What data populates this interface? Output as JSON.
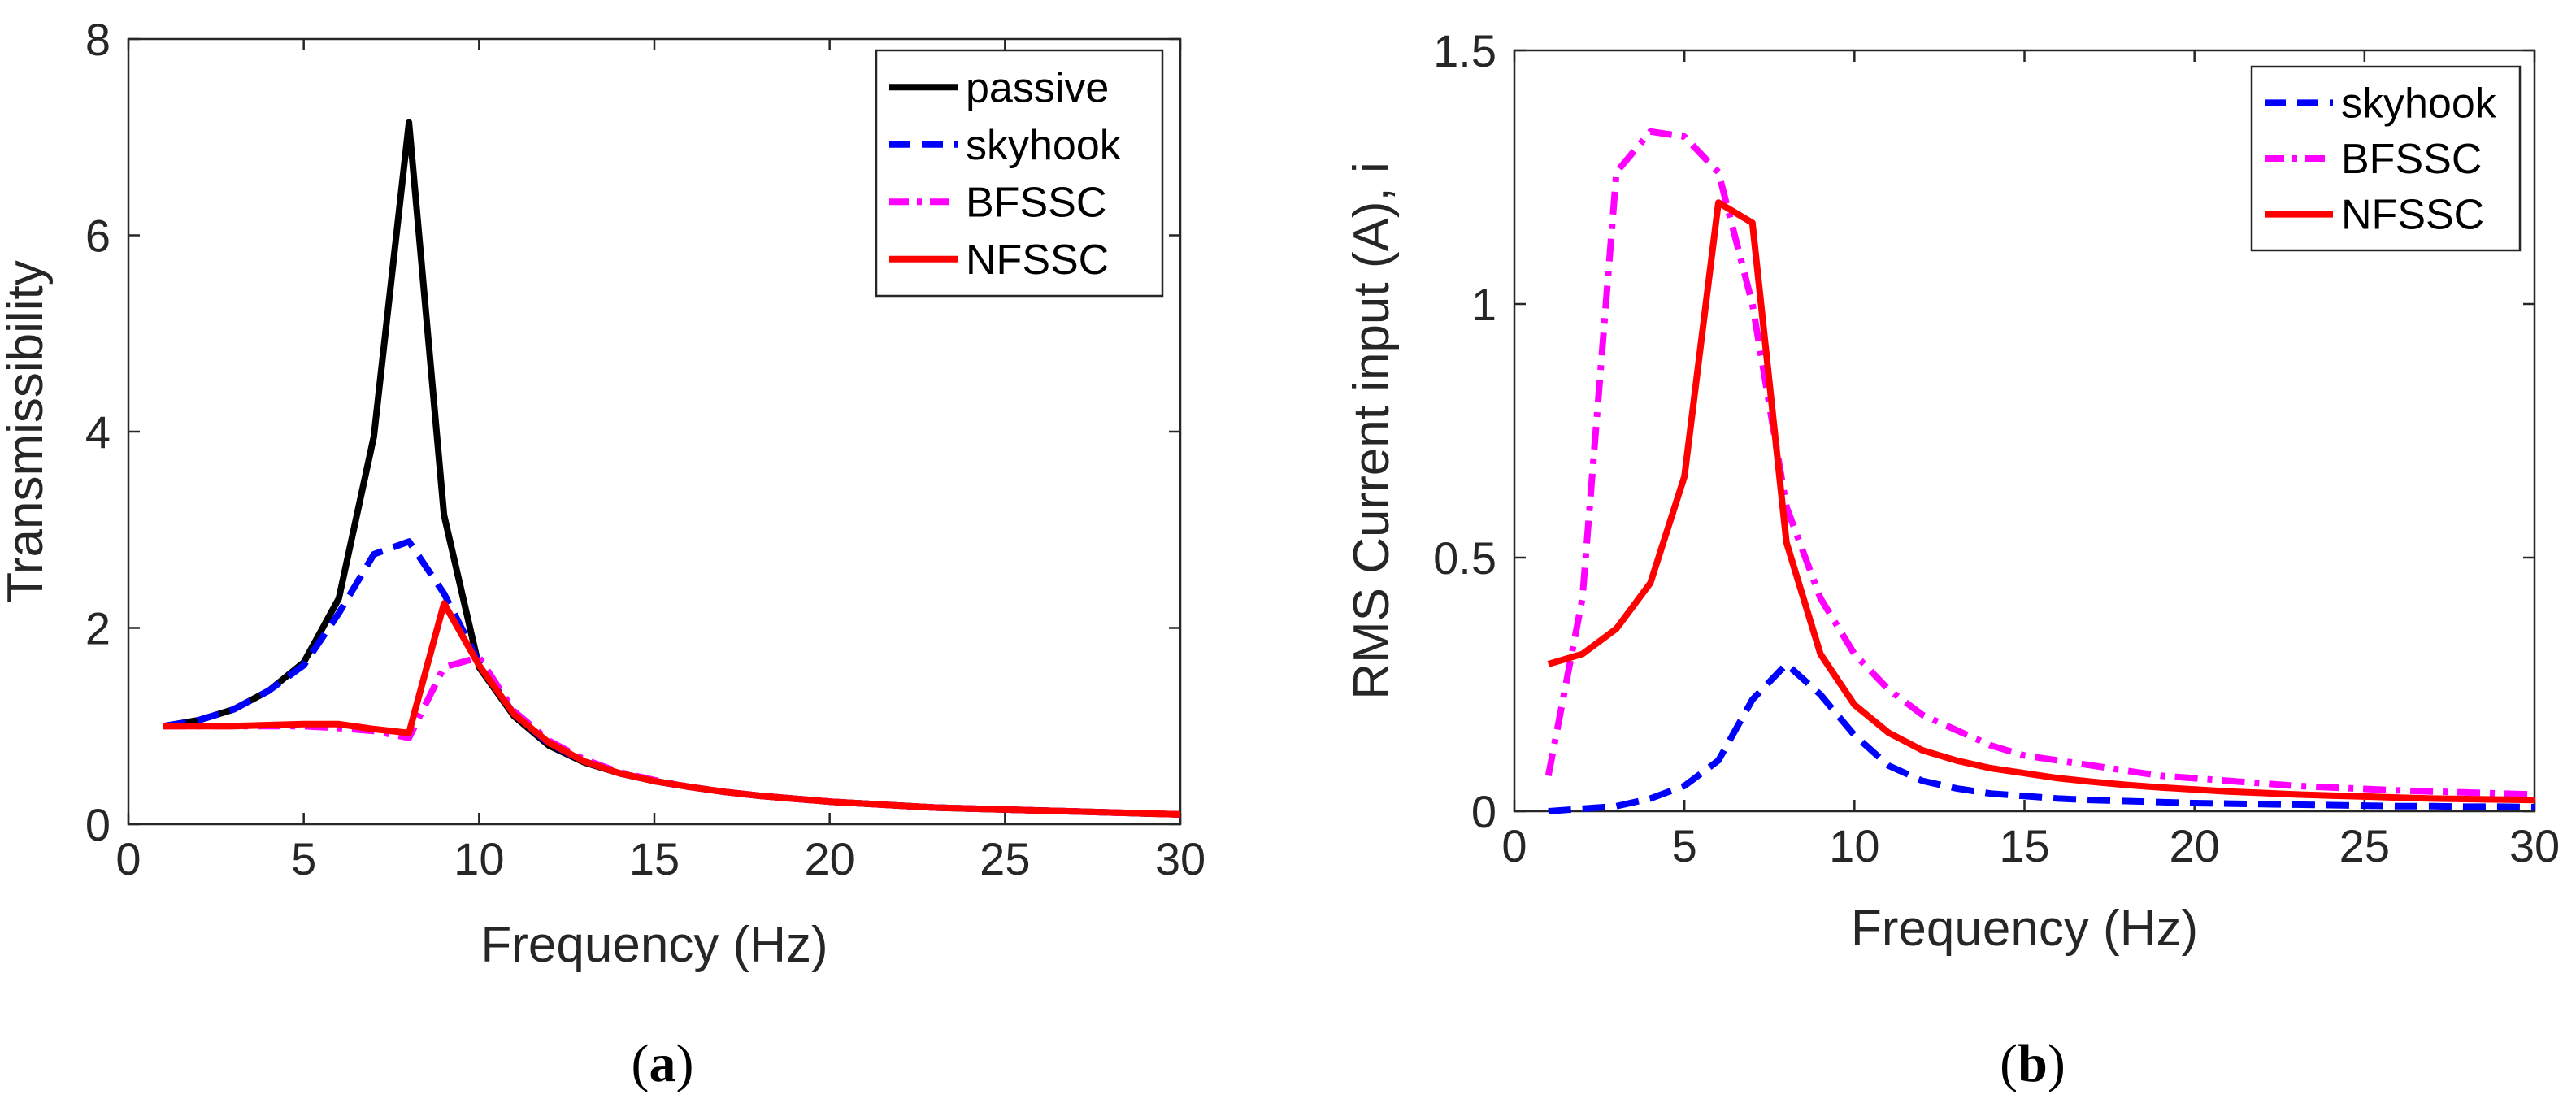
{
  "chart_data": [
    {
      "id": "a",
      "type": "line",
      "caption": {
        "open": "(",
        "letter": "a",
        "close": ")"
      },
      "xlabel": "Frequency (Hz)",
      "ylabel": "Transmissibility",
      "xlim": [
        0,
        30
      ],
      "ylim": [
        0,
        8
      ],
      "xticks": [
        0,
        5,
        10,
        15,
        20,
        25,
        30
      ],
      "yticks": [
        0,
        2,
        4,
        6,
        8
      ],
      "grid": false,
      "legend_position": "top-right",
      "series": [
        {
          "name": "passive",
          "color": "#000000",
          "dash": "solid",
          "x": [
            1,
            2,
            3,
            4,
            5,
            6,
            7,
            8,
            9,
            10,
            11,
            12,
            13,
            14,
            15,
            16,
            17,
            18,
            19,
            20,
            21,
            22,
            23,
            24,
            25,
            26,
            27,
            28,
            29,
            30
          ],
          "y": [
            1.0,
            1.06,
            1.17,
            1.36,
            1.65,
            2.3,
            3.95,
            7.15,
            3.15,
            1.6,
            1.1,
            0.8,
            0.63,
            0.52,
            0.44,
            0.38,
            0.33,
            0.29,
            0.26,
            0.23,
            0.21,
            0.19,
            0.17,
            0.16,
            0.15,
            0.14,
            0.13,
            0.12,
            0.11,
            0.1
          ]
        },
        {
          "name": "skyhook",
          "color": "#0000ff",
          "dash": "dashed",
          "x": [
            1,
            2,
            3,
            4,
            5,
            6,
            7,
            8,
            9,
            10,
            11,
            12,
            13,
            14,
            15,
            16,
            17,
            18,
            19,
            20,
            21,
            22,
            23,
            24,
            25,
            26,
            27,
            28,
            29,
            30
          ],
          "y": [
            1.0,
            1.06,
            1.17,
            1.36,
            1.62,
            2.15,
            2.75,
            2.88,
            2.35,
            1.65,
            1.12,
            0.82,
            0.64,
            0.52,
            0.44,
            0.38,
            0.33,
            0.29,
            0.26,
            0.23,
            0.21,
            0.19,
            0.17,
            0.16,
            0.15,
            0.14,
            0.13,
            0.12,
            0.11,
            0.1
          ]
        },
        {
          "name": "BFSSC",
          "color": "#ff00ff",
          "dash": "dashdot",
          "x": [
            1,
            2,
            3,
            4,
            5,
            6,
            7,
            8,
            9,
            10,
            11,
            12,
            13,
            14,
            15,
            16,
            17,
            18,
            19,
            20,
            21,
            22,
            23,
            24,
            25,
            26,
            27,
            28,
            29,
            30
          ],
          "y": [
            1.0,
            1.0,
            1.0,
            1.0,
            1.0,
            0.98,
            0.95,
            0.88,
            1.6,
            1.7,
            1.15,
            0.85,
            0.66,
            0.53,
            0.45,
            0.38,
            0.33,
            0.29,
            0.26,
            0.23,
            0.21,
            0.19,
            0.17,
            0.16,
            0.15,
            0.14,
            0.13,
            0.12,
            0.11,
            0.1
          ]
        },
        {
          "name": "NFSSC",
          "color": "#ff0000",
          "dash": "solid",
          "x": [
            1,
            2,
            3,
            4,
            5,
            6,
            7,
            8,
            9,
            10,
            11,
            12,
            13,
            14,
            15,
            16,
            17,
            18,
            19,
            20,
            21,
            22,
            23,
            24,
            25,
            26,
            27,
            28,
            29,
            30
          ],
          "y": [
            1.0,
            1.0,
            1.0,
            1.01,
            1.02,
            1.02,
            0.97,
            0.93,
            2.25,
            1.62,
            1.12,
            0.83,
            0.64,
            0.52,
            0.44,
            0.38,
            0.33,
            0.29,
            0.26,
            0.23,
            0.21,
            0.19,
            0.17,
            0.16,
            0.15,
            0.14,
            0.13,
            0.12,
            0.11,
            0.1
          ]
        }
      ]
    },
    {
      "id": "b",
      "type": "line",
      "caption": {
        "open": "(",
        "letter": "b",
        "close": ")"
      },
      "xlabel": "Frequency (Hz)",
      "ylabel": "RMS Current input (A), i",
      "xlim": [
        0,
        30
      ],
      "ylim": [
        0,
        1.5
      ],
      "xticks": [
        0,
        5,
        10,
        15,
        20,
        25,
        30
      ],
      "yticks": [
        0,
        0.5,
        1,
        1.5
      ],
      "grid": false,
      "legend_position": "top-right",
      "series": [
        {
          "name": "skyhook",
          "color": "#0000ff",
          "dash": "dashed",
          "x": [
            1,
            2,
            3,
            4,
            5,
            6,
            7,
            8,
            9,
            10,
            11,
            12,
            13,
            14,
            15,
            16,
            17,
            18,
            19,
            20,
            21,
            22,
            23,
            24,
            25,
            26,
            27,
            28,
            29,
            30
          ],
          "y": [
            0.0,
            0.005,
            0.01,
            0.025,
            0.05,
            0.1,
            0.22,
            0.29,
            0.23,
            0.15,
            0.09,
            0.06,
            0.045,
            0.035,
            0.03,
            0.025,
            0.022,
            0.02,
            0.018,
            0.016,
            0.015,
            0.014,
            0.013,
            0.012,
            0.011,
            0.01,
            0.01,
            0.009,
            0.009,
            0.008
          ]
        },
        {
          "name": "BFSSC",
          "color": "#ff00ff",
          "dash": "dashdot",
          "x": [
            1,
            2,
            3,
            4,
            5,
            6,
            7,
            8,
            9,
            10,
            11,
            12,
            13,
            14,
            15,
            16,
            17,
            18,
            19,
            20,
            21,
            22,
            23,
            24,
            25,
            26,
            27,
            28,
            29,
            30
          ],
          "y": [
            0.07,
            0.42,
            1.26,
            1.34,
            1.33,
            1.26,
            1.0,
            0.6,
            0.42,
            0.31,
            0.24,
            0.19,
            0.16,
            0.13,
            0.11,
            0.1,
            0.09,
            0.08,
            0.07,
            0.065,
            0.06,
            0.055,
            0.05,
            0.047,
            0.044,
            0.041,
            0.039,
            0.037,
            0.035,
            0.033
          ]
        },
        {
          "name": "NFSSC",
          "color": "#ff0000",
          "dash": "solid",
          "x": [
            1,
            2,
            3,
            4,
            5,
            6,
            7,
            8,
            9,
            10,
            11,
            12,
            13,
            14,
            15,
            16,
            17,
            18,
            19,
            20,
            21,
            22,
            23,
            24,
            25,
            26,
            27,
            28,
            29,
            30
          ],
          "y": [
            0.29,
            0.31,
            0.36,
            0.45,
            0.66,
            1.2,
            1.16,
            0.53,
            0.31,
            0.21,
            0.155,
            0.12,
            0.1,
            0.085,
            0.075,
            0.065,
            0.058,
            0.052,
            0.047,
            0.043,
            0.039,
            0.036,
            0.033,
            0.031,
            0.029,
            0.027,
            0.025,
            0.024,
            0.023,
            0.022
          ]
        }
      ]
    }
  ]
}
